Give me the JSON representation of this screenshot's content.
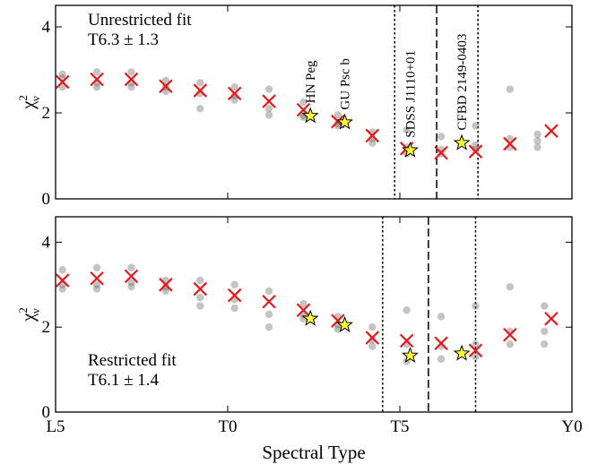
{
  "chart_data": [
    {
      "type": "scatter",
      "annotations": [
        "Unrestricted fit",
        "T6.3 ± 1.3"
      ],
      "ylabel": {
        "base": "χ",
        "sup": "2",
        "sub": "ν"
      },
      "xlim": [
        0,
        15
      ],
      "ylim": [
        0,
        4.5
      ],
      "yticks": [
        0,
        2,
        4
      ],
      "xticks": [
        {
          "value": 0,
          "label": "L5"
        },
        {
          "value": 5,
          "label": "T0"
        },
        {
          "value": 10,
          "label": "T5"
        },
        {
          "value": 15,
          "label": "Y0"
        }
      ],
      "points": {
        "color": "#555555",
        "x": [
          0.2,
          0.2,
          0.2,
          1.2,
          1.2,
          1.2,
          2.2,
          2.2,
          2.2,
          3.2,
          3.2,
          3.2,
          4.2,
          4.2,
          4.2,
          5.2,
          5.2,
          5.2,
          6.2,
          6.2,
          6.2,
          7.2,
          7.2,
          7.2,
          8.2,
          8.2,
          8.2,
          9.2,
          9.2,
          9.2,
          10.2,
          10.2,
          10.2,
          11.2,
          11.2,
          11.2,
          12.2,
          12.2,
          12.2,
          13.2,
          13.2,
          13.2,
          14.0,
          14.0,
          14.0
        ],
        "values": [
          2.9,
          2.8,
          2.6,
          2.95,
          2.7,
          2.6,
          2.95,
          2.7,
          2.6,
          2.75,
          2.6,
          2.5,
          2.7,
          2.45,
          2.1,
          2.6,
          2.4,
          2.3,
          2.55,
          2.1,
          1.95,
          2.25,
          1.95,
          1.9,
          1.95,
          1.7,
          1.75,
          1.55,
          1.4,
          1.3,
          1.6,
          1.2,
          1.05,
          1.45,
          1.15,
          1.05,
          1.7,
          1.25,
          1.15,
          2.55,
          1.4,
          1.2,
          1.5,
          1.35,
          1.2
        ]
      },
      "best": {
        "color": "#e41a1c",
        "x": [
          0.2,
          1.2,
          2.2,
          3.2,
          4.2,
          5.2,
          6.2,
          7.2,
          8.2,
          9.2,
          10.2,
          11.2,
          12.2,
          13.2,
          14.4
        ],
        "values": [
          2.72,
          2.78,
          2.78,
          2.62,
          2.52,
          2.45,
          2.27,
          2.07,
          1.8,
          1.47,
          1.17,
          1.07,
          1.1,
          1.28,
          1.58
        ]
      },
      "stars": {
        "color": "#ffff33",
        "labels": [
          "HN Peg",
          "GU Psc b",
          "SDSS J1110+01",
          "CFBD 2149-0403"
        ],
        "x": [
          7.4,
          8.4,
          10.3,
          11.8
        ],
        "values": [
          1.93,
          1.78,
          1.13,
          1.3
        ]
      },
      "vlines": [
        {
          "x": 9.85,
          "style": "dotted"
        },
        {
          "x": 11.07,
          "style": "dashed"
        },
        {
          "x": 12.27,
          "style": "dotted"
        }
      ]
    },
    {
      "type": "scatter",
      "annotations": [
        "Restricted fit",
        "T6.1 ± 1.4"
      ],
      "ylabel": {
        "base": "χ",
        "sup": "2",
        "sub": "ν"
      },
      "xlabel": "Spectral Type",
      "xlim": [
        0,
        15
      ],
      "ylim": [
        0,
        4.6
      ],
      "yticks": [
        0,
        2,
        4
      ],
      "xticks": [
        {
          "value": 0,
          "label": "L5"
        },
        {
          "value": 5,
          "label": "T0"
        },
        {
          "value": 10,
          "label": "T5"
        },
        {
          "value": 15,
          "label": "Y0"
        }
      ],
      "points": {
        "color": "#555555",
        "x": [
          0.2,
          0.2,
          0.2,
          1.2,
          1.2,
          1.2,
          2.2,
          2.2,
          2.2,
          3.2,
          3.2,
          3.2,
          4.2,
          4.2,
          4.2,
          5.2,
          5.2,
          5.2,
          6.2,
          6.2,
          6.2,
          7.2,
          7.2,
          7.2,
          8.2,
          8.2,
          8.2,
          9.2,
          9.2,
          9.2,
          10.2,
          10.2,
          10.2,
          11.2,
          11.2,
          11.2,
          12.2,
          12.2,
          12.2,
          13.2,
          13.2,
          13.2,
          14.2,
          14.2,
          14.2
        ],
        "values": [
          3.35,
          3.0,
          2.9,
          3.4,
          3.0,
          2.9,
          3.4,
          3.05,
          2.95,
          3.1,
          2.95,
          2.85,
          3.1,
          2.7,
          2.5,
          3.0,
          2.65,
          2.45,
          2.85,
          2.3,
          2.0,
          2.55,
          2.3,
          2.2,
          2.25,
          2.05,
          1.95,
          2.0,
          1.7,
          1.55,
          2.4,
          1.6,
          1.2,
          2.25,
          1.55,
          1.25,
          2.5,
          1.6,
          1.3,
          2.95,
          1.9,
          1.6,
          2.5,
          1.9,
          1.6
        ]
      },
      "best": {
        "color": "#e41a1c",
        "x": [
          0.2,
          1.2,
          2.2,
          3.2,
          4.2,
          5.2,
          6.2,
          7.2,
          8.2,
          9.2,
          10.2,
          11.2,
          12.2,
          13.2,
          14.4
        ],
        "values": [
          3.1,
          3.15,
          3.2,
          3.0,
          2.9,
          2.75,
          2.6,
          2.4,
          2.15,
          1.75,
          1.68,
          1.62,
          1.45,
          1.82,
          2.2
        ]
      },
      "stars": {
        "color": "#ffff33",
        "x": [
          7.4,
          8.4,
          10.3,
          11.8
        ],
        "values": [
          2.2,
          2.05,
          1.33,
          1.38
        ]
      },
      "vlines": [
        {
          "x": 9.5,
          "style": "dotted"
        },
        {
          "x": 10.83,
          "style": "dashed"
        },
        {
          "x": 12.2,
          "style": "dotted"
        }
      ]
    }
  ]
}
